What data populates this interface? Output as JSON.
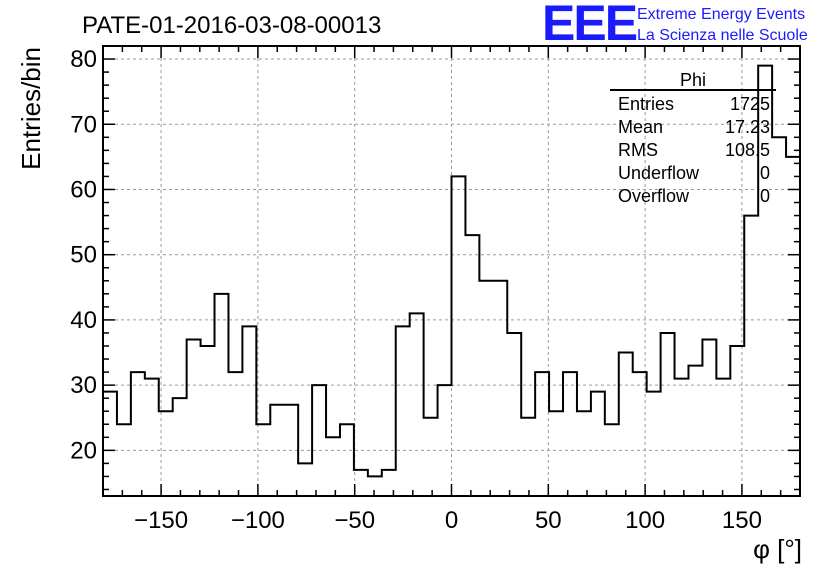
{
  "chart_data": {
    "type": "histogram",
    "title": "PATE-01-2016-03-08-00013",
    "xlabel": "φ [°]",
    "ylabel": "Entries/bin",
    "xlim": [
      -180,
      180
    ],
    "ylim": [
      13,
      82
    ],
    "x_ticks": [
      -150,
      -100,
      -50,
      0,
      50,
      100,
      150
    ],
    "y_ticks": [
      20,
      30,
      40,
      50,
      60,
      70,
      80
    ],
    "grid": true,
    "bin_width": 7.2,
    "bin_edges_start": -180,
    "values": [
      29,
      24,
      32,
      31,
      26,
      28,
      37,
      36,
      44,
      32,
      39,
      24,
      27,
      27,
      18,
      30,
      22,
      24,
      17,
      16,
      17,
      39,
      41,
      25,
      30,
      62,
      53,
      46,
      46,
      38,
      25,
      32,
      26,
      32,
      26,
      29,
      24,
      35,
      32,
      29,
      38,
      31,
      33,
      37,
      31,
      36,
      56,
      79,
      68,
      65
    ],
    "stats_box": {
      "title": "Phi",
      "rows": [
        {
          "label": "Entries",
          "value": "1725"
        },
        {
          "label": "Mean",
          "value": "17.23"
        },
        {
          "label": "RMS",
          "value": "108.5"
        },
        {
          "label": "Underflow",
          "value": "0"
        },
        {
          "label": "Overflow",
          "value": "0"
        }
      ]
    }
  },
  "logo": {
    "text": "EEE",
    "line1": "Extreme Energy Events",
    "line2": "La Scienza nelle Scuole",
    "color": "#1a1aff"
  }
}
